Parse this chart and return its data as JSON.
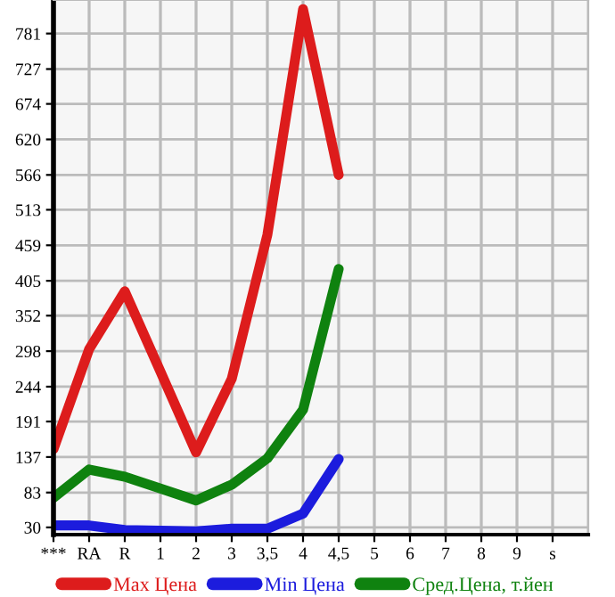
{
  "chart_data": {
    "type": "line",
    "categories": [
      "***",
      "RA",
      "R",
      "1",
      "2",
      "3",
      "3,5",
      "4",
      "4,5",
      "5",
      "6",
      "7",
      "8",
      "9",
      "s"
    ],
    "series": [
      {
        "name": "Max Цена",
        "color": "#dd1c1c",
        "values": [
          149,
          301,
          389,
          267,
          144,
          256,
          475,
          818,
          566,
          null,
          null,
          null,
          null,
          null,
          null
        ]
      },
      {
        "name": "Min Цена",
        "color": "#1c1cdd",
        "values": [
          33,
          33,
          26,
          25,
          24,
          28,
          28,
          51,
          134,
          null,
          null,
          null,
          null,
          null,
          null
        ]
      },
      {
        "name": "Сред.Цена, т.йен",
        "color": "#0f820f",
        "values": [
          75,
          118,
          107,
          89,
          71,
          95,
          135,
          209,
          423,
          null,
          null,
          null,
          null,
          null,
          null
        ]
      }
    ],
    "ylim": [
      19,
      832
    ],
    "yticks": [
      30,
      83,
      137,
      191,
      244,
      298,
      352,
      405,
      459,
      513,
      566,
      620,
      674,
      727,
      781
    ],
    "grid": true,
    "legend": "bottom",
    "marker": "none",
    "line_style": "solid"
  }
}
